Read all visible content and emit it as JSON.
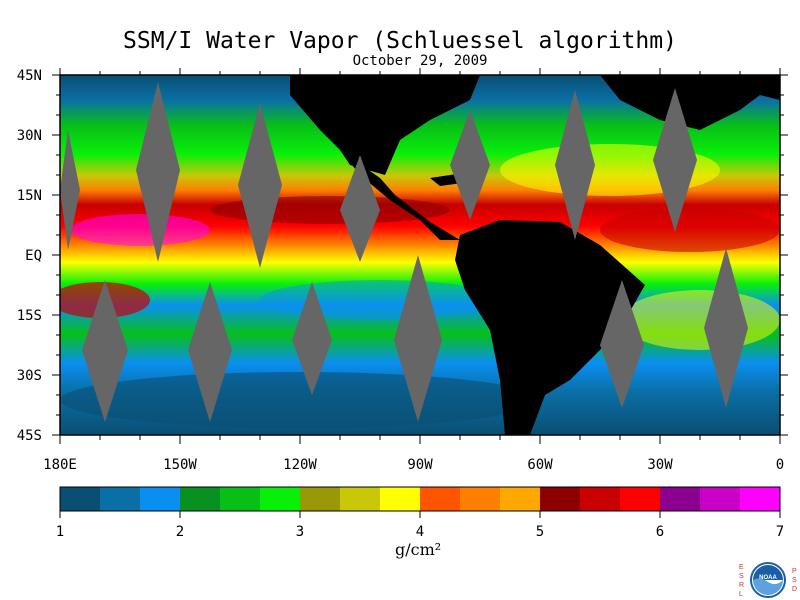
{
  "title": "SSM/I Water Vapor (Schluessel algorithm)",
  "date": "October 29, 2009",
  "lat_labels": [
    "45N",
    "30N",
    "15N",
    "EQ",
    "15S",
    "30S",
    "45S"
  ],
  "lon_labels": [
    "180E",
    "150W",
    "120W",
    "90W",
    "60W",
    "30W",
    "0"
  ],
  "colorbar": {
    "ticks": [
      "1",
      "2",
      "3",
      "4",
      "5",
      "6",
      "7"
    ],
    "colors": [
      "#0a4f73",
      "#0a6fa6",
      "#0a8ff0",
      "#079120",
      "#08bf18",
      "#08f008",
      "#999908",
      "#c8c808",
      "#ffff00",
      "#ff5500",
      "#ff7f00",
      "#ffa800",
      "#8c0000",
      "#c80000",
      "#ff0000",
      "#8c0090",
      "#c800c8",
      "#ff00ff"
    ],
    "units": "g/cm²"
  },
  "logo": {
    "left_letters": "ESRL",
    "right_letters": "PSD",
    "center": "NOAA"
  }
}
